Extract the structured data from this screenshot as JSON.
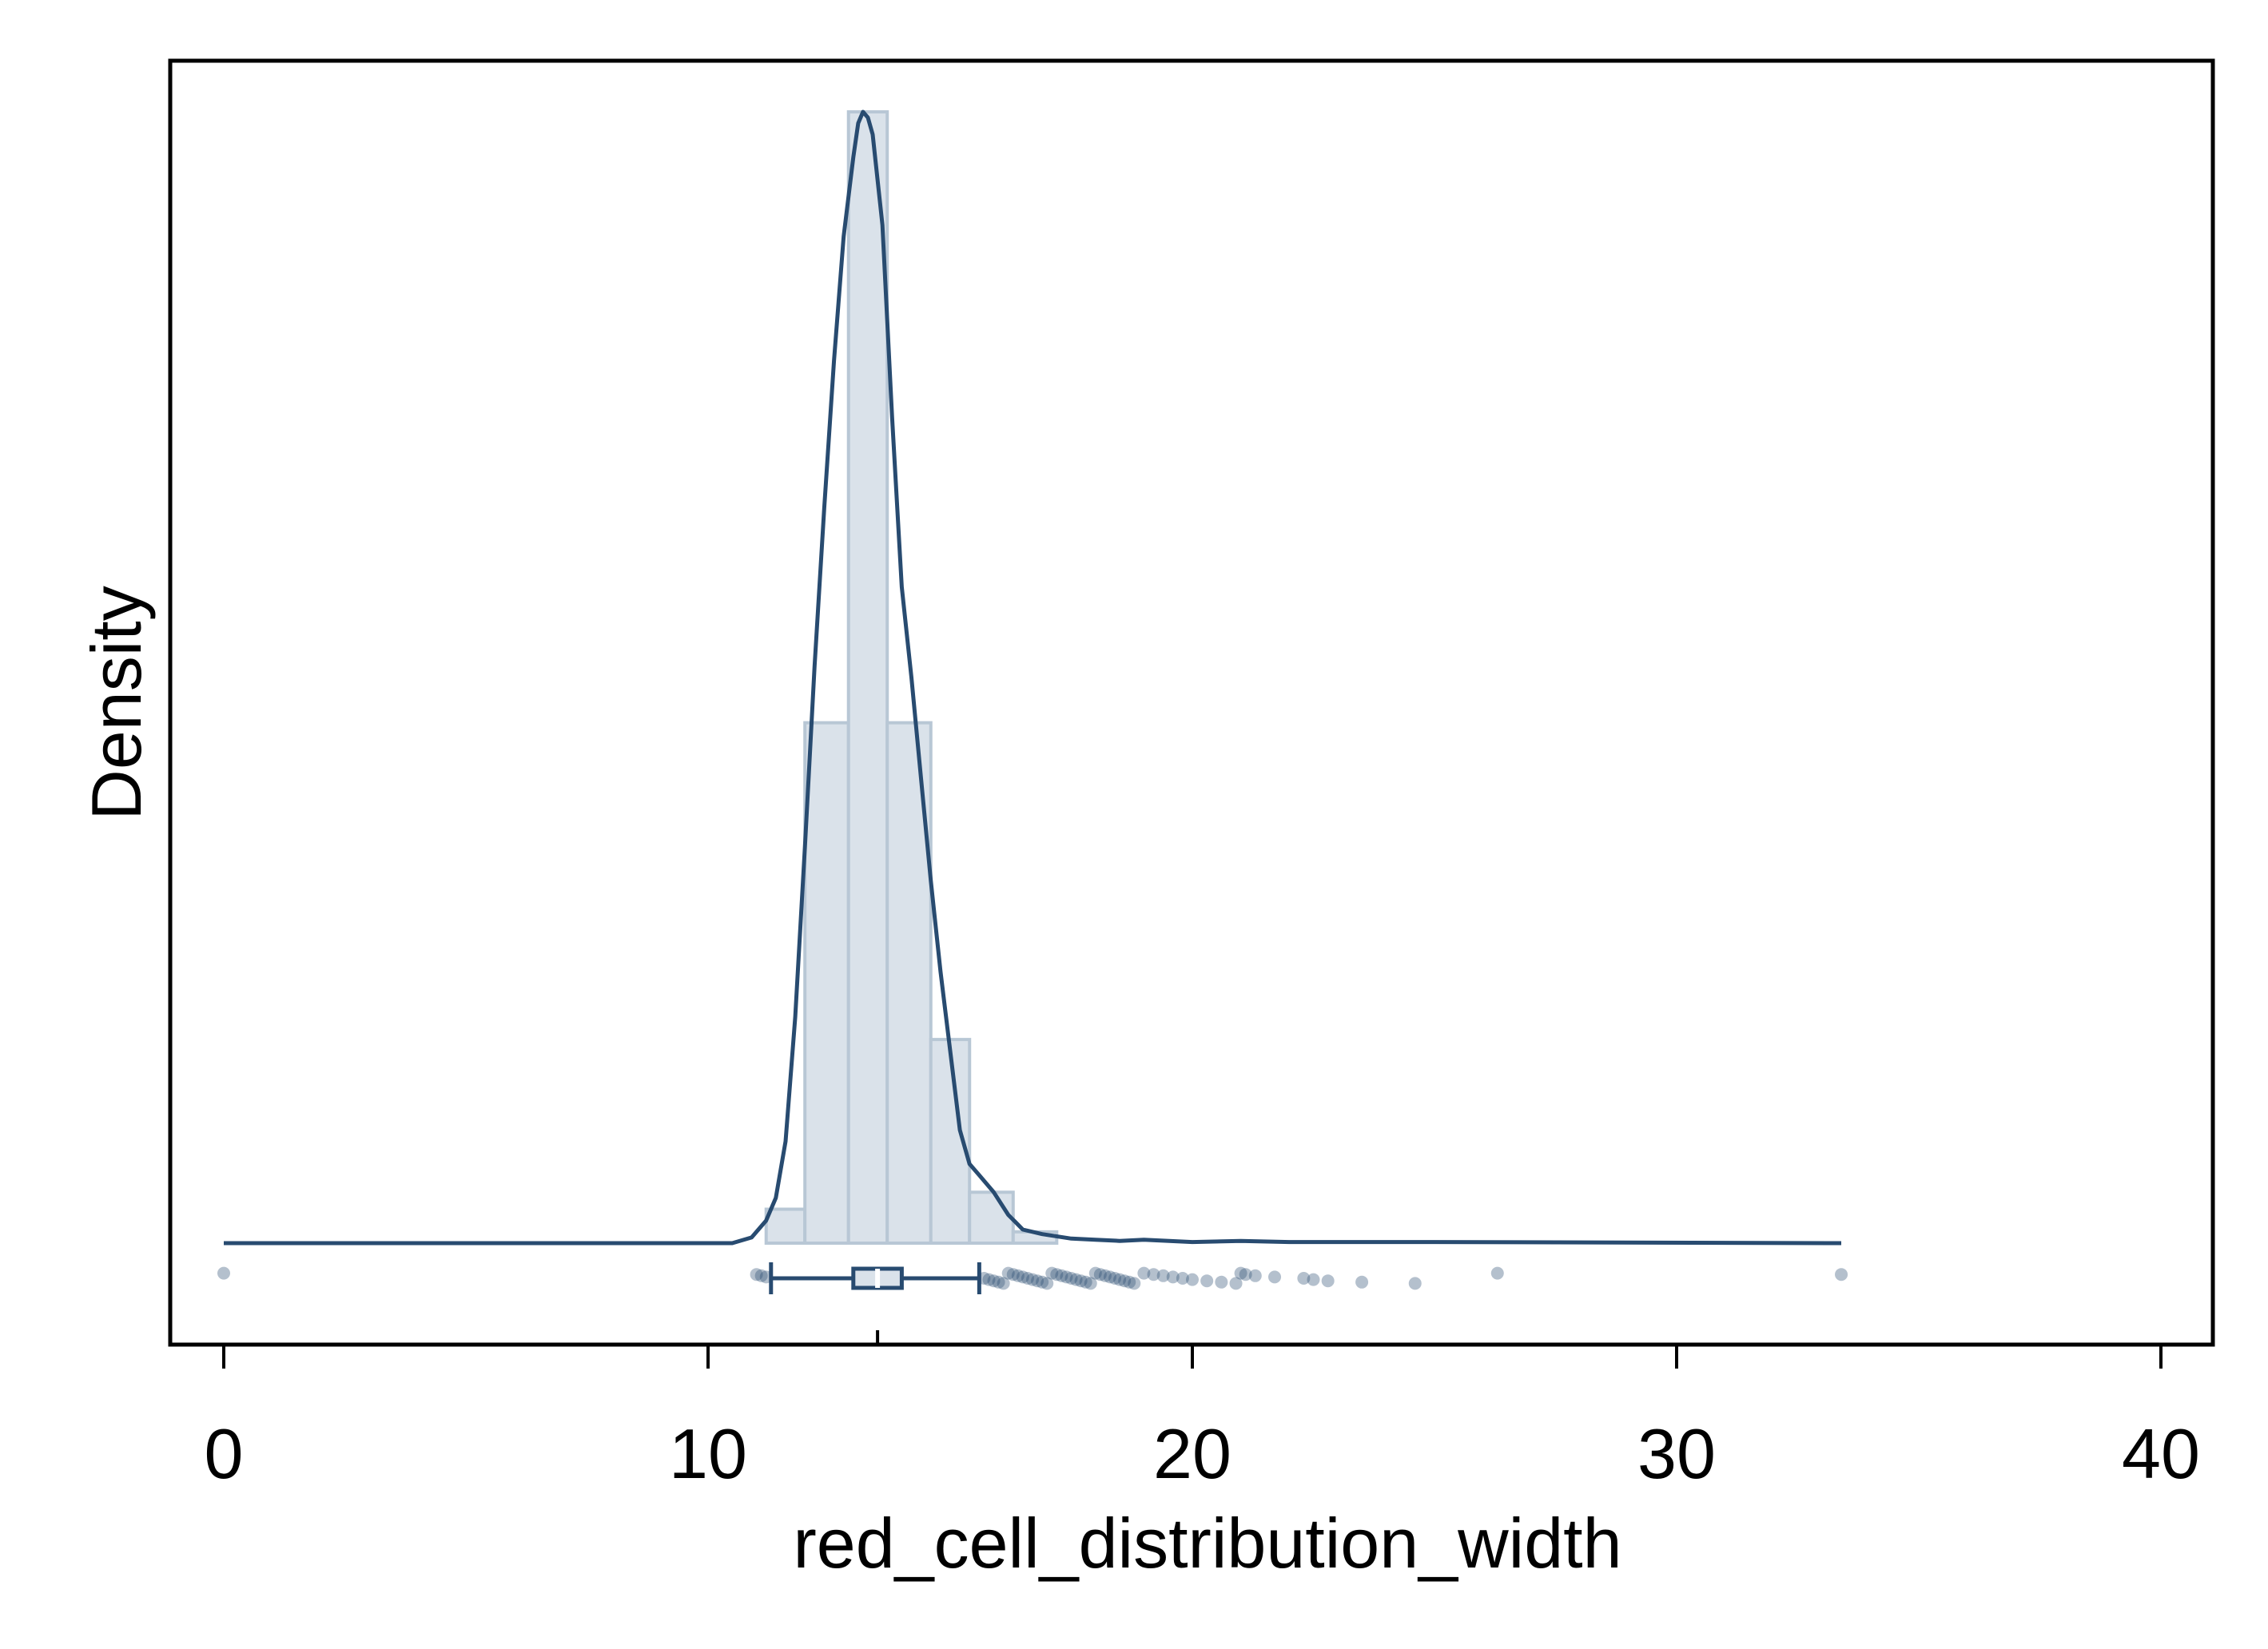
{
  "chart_data": {
    "type": "histogram",
    "xlabel": "red_cell_distribution_width",
    "ylabel": "Density",
    "xlim": [
      -1.1,
      41.1
    ],
    "x_ticks": [
      0,
      10,
      20,
      30,
      40
    ],
    "x_tick_labels": [
      "0",
      "10",
      "20",
      "30",
      "40"
    ],
    "grid": false,
    "legend": "none",
    "colors": {
      "line": "#284b70",
      "bar_fill": "#dae2ea",
      "bar_edge": "#b8c7d5",
      "points": "#284b70",
      "frame": "#000000"
    },
    "histogram": {
      "bin_edges": [
        11.2,
        12.0,
        12.9,
        13.7,
        14.6,
        15.4,
        16.3,
        17.2
      ],
      "relative_heights": [
        0.03,
        0.46,
        1.0,
        0.46,
        0.18,
        0.045,
        0.01
      ]
    },
    "kde": {
      "x": [
        0.0,
        10.5,
        10.9,
        11.2,
        11.4,
        11.6,
        11.8,
        12.0,
        12.2,
        12.4,
        12.6,
        12.8,
        13.0,
        13.1,
        13.2,
        13.3,
        13.4,
        13.6,
        13.8,
        14.0,
        14.2,
        14.4,
        14.6,
        14.8,
        15.0,
        15.2,
        15.4,
        15.6,
        15.9,
        16.2,
        16.5,
        16.9,
        17.5,
        18.0,
        18.5,
        19.0,
        20.0,
        21.0,
        22.0,
        25.0,
        33.4
      ],
      "y": [
        0.0,
        0.0,
        0.005,
        0.02,
        0.04,
        0.09,
        0.2,
        0.35,
        0.51,
        0.65,
        0.78,
        0.89,
        0.96,
        0.99,
        1.0,
        0.995,
        0.98,
        0.9,
        0.73,
        0.58,
        0.5,
        0.41,
        0.32,
        0.24,
        0.17,
        0.1,
        0.07,
        0.06,
        0.045,
        0.025,
        0.012,
        0.008,
        0.004,
        0.003,
        0.002,
        0.003,
        0.001,
        0.002,
        0.001,
        0.001,
        0.0
      ]
    },
    "boxplot": {
      "whisker_low": 11.3,
      "q1": 13.0,
      "median": 13.5,
      "q3": 14.0,
      "whisker_high": 15.6,
      "outliers": [
        0.0,
        11.0,
        11.1,
        11.2,
        15.7,
        15.8,
        15.9,
        16.0,
        16.1,
        16.2,
        16.3,
        16.4,
        16.5,
        16.6,
        16.7,
        16.8,
        16.9,
        17.0,
        17.1,
        17.2,
        17.3,
        17.4,
        17.5,
        17.6,
        17.7,
        17.8,
        17.9,
        18.0,
        18.1,
        18.2,
        18.3,
        18.4,
        18.5,
        18.6,
        18.7,
        18.8,
        19.0,
        19.2,
        19.4,
        19.6,
        19.8,
        20.0,
        20.3,
        20.6,
        20.9,
        21.0,
        21.1,
        21.3,
        21.7,
        22.3,
        22.5,
        22.8,
        23.5,
        24.6,
        26.3,
        33.4
      ]
    }
  }
}
